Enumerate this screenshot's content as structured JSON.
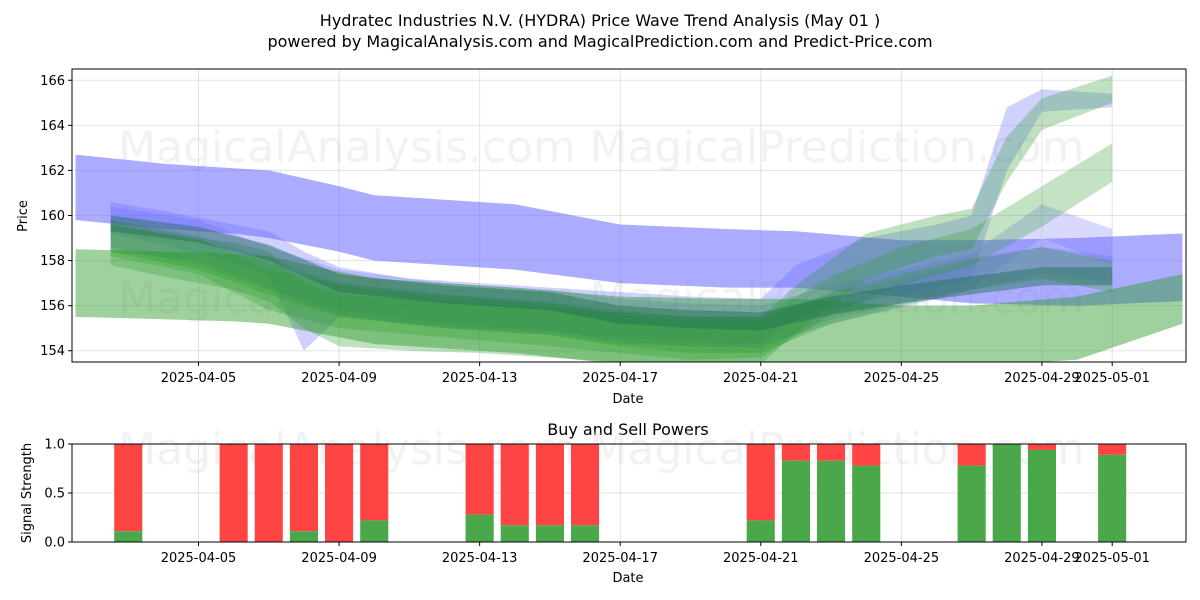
{
  "chart_data": [
    {
      "type": "area",
      "title_line1": "Hydratec Industries N.V. (HYDRA) Price Wave Trend Analysis (May 01 )",
      "title_line2": "powered by MagicalAnalysis.com and MagicalPrediction.com and Predict-Price.com",
      "xlabel": "Date",
      "ylabel": "Price",
      "xlim": [
        -0.6,
        31.1
      ],
      "ylim": [
        153.5,
        166.5
      ],
      "date_origin": "2025-04-02",
      "x_ticks": [
        {
          "day": 3,
          "label": "2025-04-05"
        },
        {
          "day": 7,
          "label": "2025-04-09"
        },
        {
          "day": 11,
          "label": "2025-04-13"
        },
        {
          "day": 15,
          "label": "2025-04-17"
        },
        {
          "day": 19,
          "label": "2025-04-21"
        },
        {
          "day": 23,
          "label": "2025-04-25"
        },
        {
          "day": 27,
          "label": "2025-04-29"
        },
        {
          "day": 29,
          "label": "2025-05-01"
        }
      ],
      "y_ticks": [
        154,
        156,
        158,
        160,
        162,
        164,
        166
      ],
      "watermarks": [
        "MagicalAnalysis.com",
        "MagicalPrediction.com",
        "MagicalAnalysis.com",
        "MagicalPrediction.com"
      ],
      "series": [
        {
          "name": "blue-wide-band",
          "color": "#6666ff",
          "opacity": 0.55,
          "x": [
            -0.5,
            2,
            4,
            5,
            7,
            8,
            10,
            12,
            15,
            18,
            20,
            23,
            25,
            28,
            31
          ],
          "upper": [
            162.7,
            162.3,
            162.1,
            162.0,
            161.3,
            160.9,
            160.7,
            160.5,
            159.6,
            159.4,
            159.3,
            158.9,
            158.9,
            159.0,
            159.2
          ],
          "lower": [
            159.8,
            159.4,
            159.2,
            159.0,
            158.4,
            158.0,
            157.8,
            157.6,
            157.0,
            156.8,
            156.8,
            156.4,
            156.1,
            156.0,
            156.2
          ]
        },
        {
          "name": "blue-band-2",
          "color": "#6666ff",
          "opacity": 0.3,
          "x": [
            0.5,
            2,
            4,
            5,
            6,
            7,
            9,
            11,
            13,
            15,
            17,
            19,
            20,
            22,
            24,
            25,
            26,
            27,
            29
          ],
          "upper": [
            160.6,
            160.2,
            159.6,
            159.3,
            158.4,
            157.7,
            157.2,
            157.0,
            156.8,
            156.6,
            156.4,
            156.3,
            157.8,
            159.0,
            159.6,
            160.0,
            164.8,
            165.6,
            165.4
          ],
          "lower": [
            159.2,
            158.7,
            157.9,
            157.3,
            154.0,
            155.5,
            155.2,
            155.0,
            154.8,
            154.6,
            154.4,
            154.3,
            155.5,
            156.2,
            156.8,
            157.2,
            162.0,
            164.6,
            164.8
          ]
        },
        {
          "name": "blue-band-3",
          "color": "#6666ff",
          "opacity": 0.25,
          "x": [
            0.5,
            3,
            5,
            7,
            10,
            13,
            15,
            17,
            19,
            21,
            23,
            25,
            27,
            29
          ],
          "upper": [
            160.4,
            159.8,
            158.6,
            157.6,
            157.0,
            156.7,
            156.3,
            156.1,
            156.0,
            156.9,
            157.6,
            158.3,
            160.5,
            159.4
          ],
          "lower": [
            158.4,
            158.0,
            156.8,
            155.6,
            155.0,
            154.7,
            154.3,
            154.2,
            154.1,
            155.4,
            156.1,
            156.8,
            159.0,
            157.8
          ]
        },
        {
          "name": "blue-band-4",
          "color": "#6666ff",
          "opacity": 0.25,
          "x": [
            0.5,
            3,
            5,
            7,
            10,
            13,
            15,
            17,
            19,
            21,
            23,
            25,
            27,
            29
          ],
          "upper": [
            159.8,
            159.1,
            158.1,
            157.0,
            156.5,
            156.2,
            155.7,
            155.5,
            155.5,
            156.5,
            157.2,
            158.0,
            158.6,
            158.2
          ],
          "lower": [
            158.6,
            157.8,
            156.7,
            155.8,
            155.2,
            154.9,
            154.4,
            154.2,
            154.2,
            155.2,
            155.9,
            156.7,
            157.4,
            157.0
          ]
        },
        {
          "name": "green-wide-band",
          "color": "#2a9a2a",
          "opacity": 0.45,
          "x": [
            -0.5,
            2,
            4,
            5,
            7,
            8,
            10,
            12,
            15,
            18,
            20,
            23,
            25,
            28,
            31
          ],
          "upper": [
            158.5,
            158.4,
            158.3,
            158.2,
            157.5,
            157.2,
            157.0,
            156.8,
            156.4,
            156.3,
            156.3,
            156.0,
            156.0,
            156.4,
            157.4
          ],
          "lower": [
            155.5,
            155.4,
            155.3,
            155.2,
            154.6,
            154.3,
            154.1,
            153.9,
            153.4,
            153.2,
            153.2,
            153.1,
            153.3,
            153.6,
            155.2
          ]
        },
        {
          "name": "green-band-2",
          "color": "#2a9a2a",
          "opacity": 0.3,
          "x": [
            0.5,
            2,
            4,
            5,
            6,
            7,
            9,
            11,
            13,
            15,
            17,
            19,
            20,
            22,
            24,
            25,
            26,
            27,
            29
          ],
          "upper": [
            159.6,
            159.2,
            158.8,
            158.4,
            157.0,
            156.5,
            156.3,
            156.1,
            155.9,
            155.7,
            155.5,
            155.5,
            156.9,
            159.2,
            160.0,
            160.3,
            163.5,
            165.2,
            166.2
          ],
          "lower": [
            157.8,
            157.3,
            156.7,
            156.2,
            155.0,
            154.2,
            154.0,
            153.9,
            153.7,
            153.5,
            153.4,
            153.4,
            154.8,
            157.2,
            158.2,
            158.5,
            161.5,
            163.8,
            165.0
          ]
        },
        {
          "name": "green-band-3",
          "color": "#2a9a2a",
          "opacity": 0.28,
          "x": [
            0.5,
            3,
            5,
            7,
            10,
            13,
            15,
            17,
            19,
            21,
            23,
            25,
            27,
            29
          ],
          "upper": [
            159.8,
            159.0,
            157.6,
            157.0,
            156.5,
            156.1,
            155.8,
            155.5,
            155.5,
            157.3,
            158.6,
            159.4,
            161.3,
            163.2
          ],
          "lower": [
            158.2,
            157.4,
            155.8,
            155.0,
            154.6,
            154.2,
            153.9,
            153.6,
            153.7,
            155.6,
            156.9,
            157.8,
            159.5,
            161.5
          ]
        },
        {
          "name": "green-band-4",
          "color": "#2a9a2a",
          "opacity": 0.3,
          "x": [
            0.5,
            3,
            5,
            7,
            10,
            13,
            15,
            17,
            19,
            21,
            23,
            25,
            27,
            29
          ],
          "upper": [
            159.6,
            158.9,
            157.9,
            156.9,
            156.4,
            156.1,
            155.6,
            155.3,
            155.3,
            156.6,
            157.4,
            158.1,
            158.6,
            158.0
          ],
          "lower": [
            158.4,
            157.6,
            156.5,
            155.5,
            155.0,
            154.7,
            154.2,
            153.9,
            153.9,
            155.2,
            156.0,
            156.7,
            157.2,
            156.6
          ]
        },
        {
          "name": "teal-core-band",
          "color": "#1f6f4f",
          "opacity": 0.45,
          "x": [
            0.5,
            3,
            5,
            7,
            10,
            13,
            15,
            17,
            19,
            21,
            23,
            25,
            27,
            29
          ],
          "upper": [
            160.0,
            159.5,
            158.7,
            157.4,
            156.9,
            156.6,
            156.0,
            155.8,
            155.7,
            156.4,
            156.9,
            157.3,
            157.7,
            157.7
          ],
          "lower": [
            159.3,
            158.8,
            158.0,
            156.6,
            156.1,
            155.8,
            155.2,
            155.0,
            154.9,
            155.6,
            156.1,
            156.5,
            156.9,
            156.9
          ]
        }
      ]
    },
    {
      "type": "bar",
      "title": "Buy and Sell Powers",
      "xlabel": "Date",
      "ylabel": "Signal Strength",
      "ylim": [
        0,
        1.0
      ],
      "y_ticks": [
        {
          "value": 0.0,
          "label": "0.0"
        },
        {
          "value": 0.5,
          "label": "0.5"
        },
        {
          "value": 1.0,
          "label": "1.0"
        }
      ],
      "buy_color": "#4aa84a",
      "sell_color": "#ff4444",
      "bars": [
        {
          "day": 1,
          "buy": 0.11
        },
        {
          "day": 4,
          "buy": 0.0
        },
        {
          "day": 5,
          "buy": 0.0
        },
        {
          "day": 6,
          "buy": 0.11
        },
        {
          "day": 7,
          "buy": 0.0
        },
        {
          "day": 8,
          "buy": 0.22
        },
        {
          "day": 11,
          "buy": 0.28
        },
        {
          "day": 12,
          "buy": 0.17
        },
        {
          "day": 13,
          "buy": 0.17
        },
        {
          "day": 14,
          "buy": 0.17
        },
        {
          "day": 19,
          "buy": 0.22
        },
        {
          "day": 20,
          "buy": 0.83
        },
        {
          "day": 21,
          "buy": 0.83
        },
        {
          "day": 22,
          "buy": 0.78
        },
        {
          "day": 25,
          "buy": 0.78
        },
        {
          "day": 26,
          "buy": 1.0
        },
        {
          "day": 27,
          "buy": 0.94
        },
        {
          "day": 29,
          "buy": 0.89
        }
      ]
    }
  ]
}
